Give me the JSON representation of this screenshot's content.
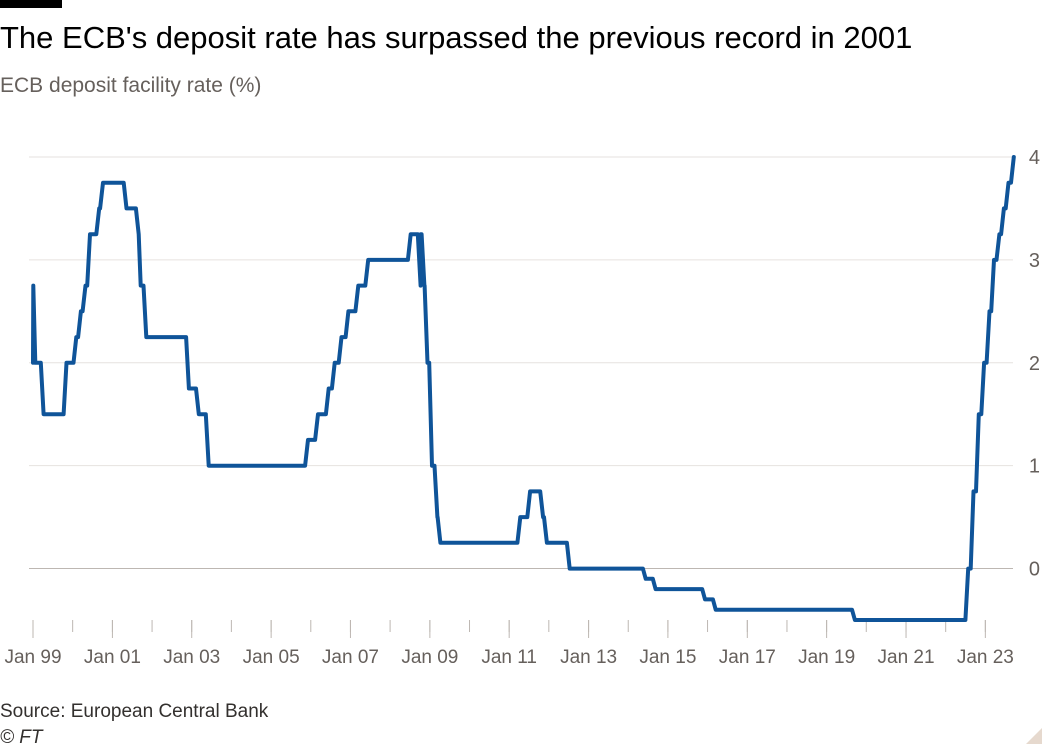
{
  "header": {
    "title": "The ECB's deposit rate has surpassed the previous record in 2001",
    "subtitle": "ECB deposit facility rate (%)"
  },
  "footer": {
    "source": "Source: European Central Bank",
    "copyright": "© FT"
  },
  "colors": {
    "line": "#0f5499",
    "grid": "#e6e2df",
    "axis_text": "#66605c",
    "baseline": "#bdb7b2"
  },
  "chart_data": {
    "type": "line",
    "title": "The ECB's deposit rate has surpassed the previous record in 2001",
    "subtitle": "ECB deposit facility rate (%)",
    "xlabel": "",
    "ylabel": "",
    "xlim": [
      "1999-01-01",
      "2023-10-01"
    ],
    "ylim": [
      -0.5,
      4
    ],
    "y_ticks": [
      0,
      1,
      2,
      3,
      4
    ],
    "y_tick_labels": [
      "0",
      "1",
      "2",
      "3",
      "4"
    ],
    "y_axis_position": "right",
    "grid": true,
    "x_ticks": [
      "1999-01-01",
      "2001-01-01",
      "2003-01-01",
      "2005-01-01",
      "2007-01-01",
      "2009-01-01",
      "2011-01-01",
      "2013-01-01",
      "2015-01-01",
      "2017-01-01",
      "2019-01-01",
      "2021-01-01",
      "2023-01-01"
    ],
    "x_tick_labels": [
      "Jan 99",
      "Jan 01",
      "Jan 03",
      "Jan 05",
      "Jan 07",
      "Jan 09",
      "Jan 11",
      "Jan 13",
      "Jan 15",
      "Jan 17",
      "Jan 19",
      "Jan 21",
      "Jan 23"
    ],
    "legend": "none",
    "series": [
      {
        "x": [
          "1999-01-01",
          "1999-01-04",
          "1999-01-22",
          "1999-04-09",
          "1999-11-05",
          "2000-02-04",
          "2000-03-17",
          "2000-04-28",
          "2000-06-09",
          "2000-09-01",
          "2000-10-06",
          "2001-05-11",
          "2001-08-31",
          "2001-09-18",
          "2001-11-09",
          "2002-12-06",
          "2003-03-07",
          "2003-06-06",
          "2005-12-06",
          "2006-03-08",
          "2006-06-15",
          "2006-08-09",
          "2006-10-11",
          "2006-12-13",
          "2007-03-14",
          "2007-06-13",
          "2008-07-09",
          "2008-10-08",
          "2008-10-09",
          "2008-11-12",
          "2008-12-10",
          "2009-01-21",
          "2009-03-11",
          "2009-04-08",
          "2011-04-13",
          "2011-07-13",
          "2011-11-09",
          "2011-12-14",
          "2012-07-11",
          "2014-06-11",
          "2014-09-10",
          "2015-12-09",
          "2016-03-16",
          "2019-09-18",
          "2022-07-27",
          "2022-09-14",
          "2022-11-02",
          "2022-12-21",
          "2023-02-08",
          "2023-03-22",
          "2023-05-10",
          "2023-06-21",
          "2023-08-02",
          "2023-09-20"
        ],
        "values": [
          2.0,
          2.75,
          2.0,
          1.5,
          2.0,
          2.25,
          2.5,
          2.75,
          3.25,
          3.5,
          3.75,
          3.5,
          3.25,
          2.75,
          2.25,
          1.75,
          1.5,
          1.0,
          1.25,
          1.5,
          1.75,
          2.0,
          2.25,
          2.5,
          2.75,
          3.0,
          3.25,
          2.75,
          3.25,
          2.75,
          2.0,
          1.0,
          0.5,
          0.25,
          0.5,
          0.75,
          0.5,
          0.25,
          0.0,
          -0.1,
          -0.2,
          -0.3,
          -0.4,
          -0.5,
          0.0,
          0.75,
          1.5,
          2.0,
          2.5,
          3.0,
          3.25,
          3.5,
          3.75,
          4.0
        ]
      }
    ]
  }
}
